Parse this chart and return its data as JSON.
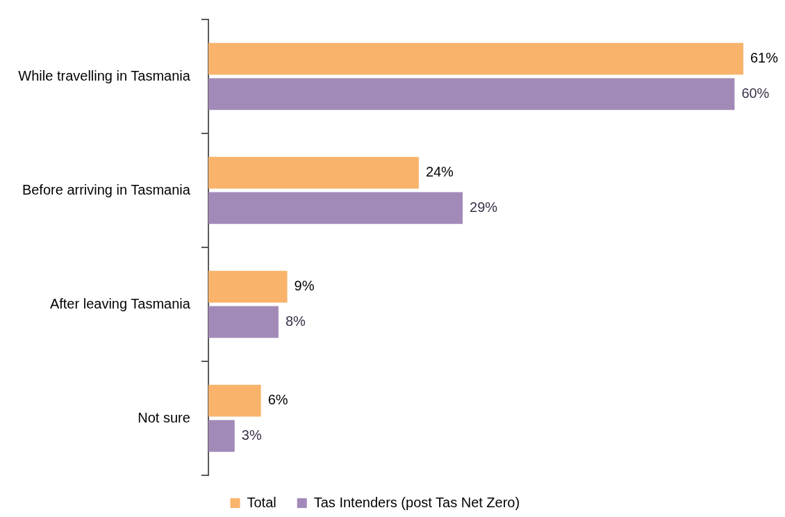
{
  "chart_data": {
    "type": "bar",
    "orientation": "horizontal",
    "categories": [
      "While travelling in Tasmania",
      "Before arriving in Tasmania",
      "After leaving Tasmania",
      "Not sure"
    ],
    "series": [
      {
        "name": "Total",
        "color": "#f9b36b",
        "values": [
          61,
          24,
          9,
          6
        ],
        "value_labels": [
          "61%",
          "24%",
          "9%",
          "6%"
        ]
      },
      {
        "name": "Tas Intenders (post Tas Net Zero)",
        "color": "#a28ab8",
        "values": [
          60,
          29,
          8,
          3
        ],
        "value_labels": [
          "60%",
          "29%",
          "8%",
          "3%"
        ]
      }
    ],
    "legend": "bottom",
    "grid": false
  }
}
